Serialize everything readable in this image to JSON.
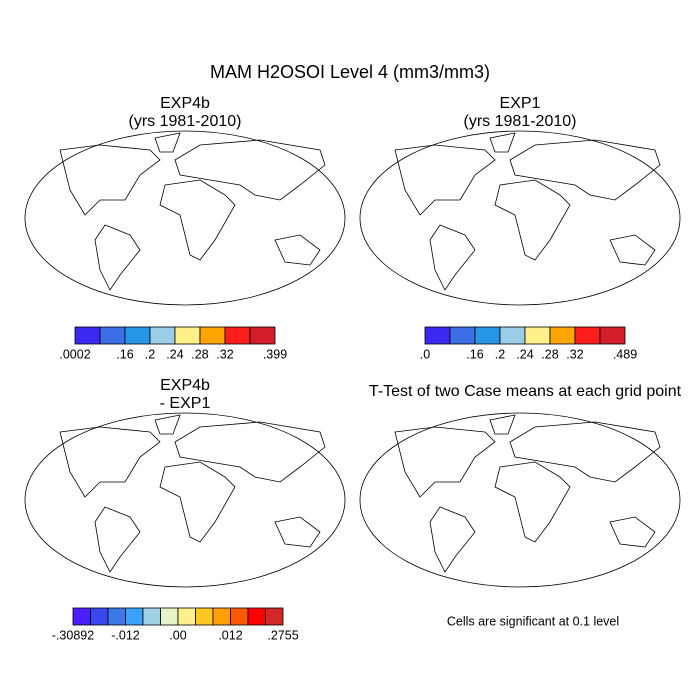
{
  "title": "MAM H2OSOI Level 4 (mm3/mm3)",
  "panels": [
    {
      "title": [
        "EXP4b",
        "(yrs 1981-2010)"
      ]
    },
    {
      "title": [
        "EXP1",
        "(yrs 1981-2010)"
      ]
    },
    {
      "title": [
        "EXP4b",
        "- EXP1"
      ]
    },
    {
      "title": [
        "T-Test of two Case means at each grid point"
      ]
    }
  ],
  "colorbars": [
    {
      "colors": [
        "#3c28f0",
        "#3c6ee6",
        "#2896e6",
        "#9bcde6",
        "#fff08c",
        "#ffa500",
        "#ff1e1e",
        "#d21e2a"
      ],
      "labels": [
        ".0002",
        ".16",
        ".2",
        ".24",
        ".28",
        ".32",
        ".399"
      ]
    },
    {
      "colors": [
        "#3c28f0",
        "#3c6ee6",
        "#2896e6",
        "#9bcde6",
        "#fff08c",
        "#ffa500",
        "#ff1e1e",
        "#d21e2a"
      ],
      "labels": [
        ".0",
        ".16",
        ".2",
        ".24",
        ".28",
        ".32",
        ".489"
      ]
    },
    {
      "colors": [
        "#4b1eff",
        "#3c46f0",
        "#3c78e6",
        "#3ca0ff",
        "#a0d2e6",
        "#e6f5c8",
        "#fff08c",
        "#ffc81e",
        "#ffa000",
        "#ff5a00",
        "#ff0000",
        "#d22828"
      ],
      "labels": [
        "-.30892",
        "-.012",
        ".00",
        ".012",
        ".2755"
      ]
    }
  ],
  "note": "Cells are significant at 0.1 level"
}
